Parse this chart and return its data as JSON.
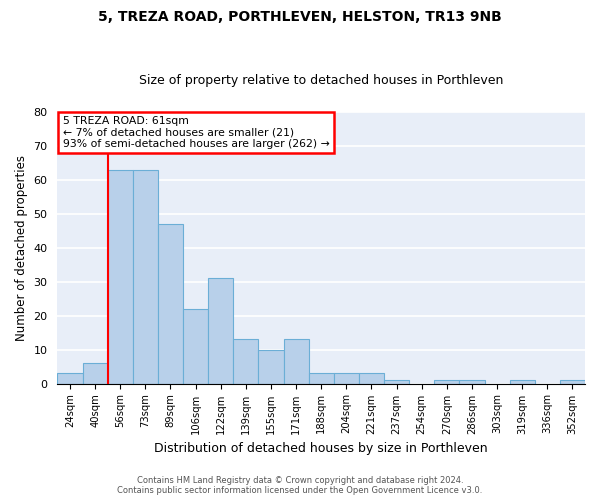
{
  "title1": "5, TREZA ROAD, PORTHLEVEN, HELSTON, TR13 9NB",
  "title2": "Size of property relative to detached houses in Porthleven",
  "xlabel": "Distribution of detached houses by size in Porthleven",
  "ylabel": "Number of detached properties",
  "bins": [
    "24sqm",
    "40sqm",
    "56sqm",
    "73sqm",
    "89sqm",
    "106sqm",
    "122sqm",
    "139sqm",
    "155sqm",
    "171sqm",
    "188sqm",
    "204sqm",
    "221sqm",
    "237sqm",
    "254sqm",
    "270sqm",
    "286sqm",
    "303sqm",
    "319sqm",
    "336sqm",
    "352sqm"
  ],
  "values": [
    3,
    6,
    63,
    63,
    47,
    22,
    31,
    13,
    10,
    13,
    3,
    3,
    3,
    1,
    0,
    1,
    1,
    0,
    1,
    0,
    1
  ],
  "bar_color": "#b8d0ea",
  "bar_edge_color": "#6baed6",
  "red_line_x": 2.0,
  "annotation_line1": "5 TREZA ROAD: 61sqm",
  "annotation_line2": "← 7% of detached houses are smaller (21)",
  "annotation_line3": "93% of semi-detached houses are larger (262) →",
  "annotation_box_color": "white",
  "annotation_box_edge_color": "red",
  "ylim": [
    0,
    80
  ],
  "yticks": [
    0,
    10,
    20,
    30,
    40,
    50,
    60,
    70,
    80
  ],
  "footer1": "Contains HM Land Registry data © Crown copyright and database right 2024.",
  "footer2": "Contains public sector information licensed under the Open Government Licence v3.0.",
  "bg_color": "#e8eef8",
  "grid_color": "white",
  "title_fontsize": 10,
  "subtitle_fontsize": 9
}
